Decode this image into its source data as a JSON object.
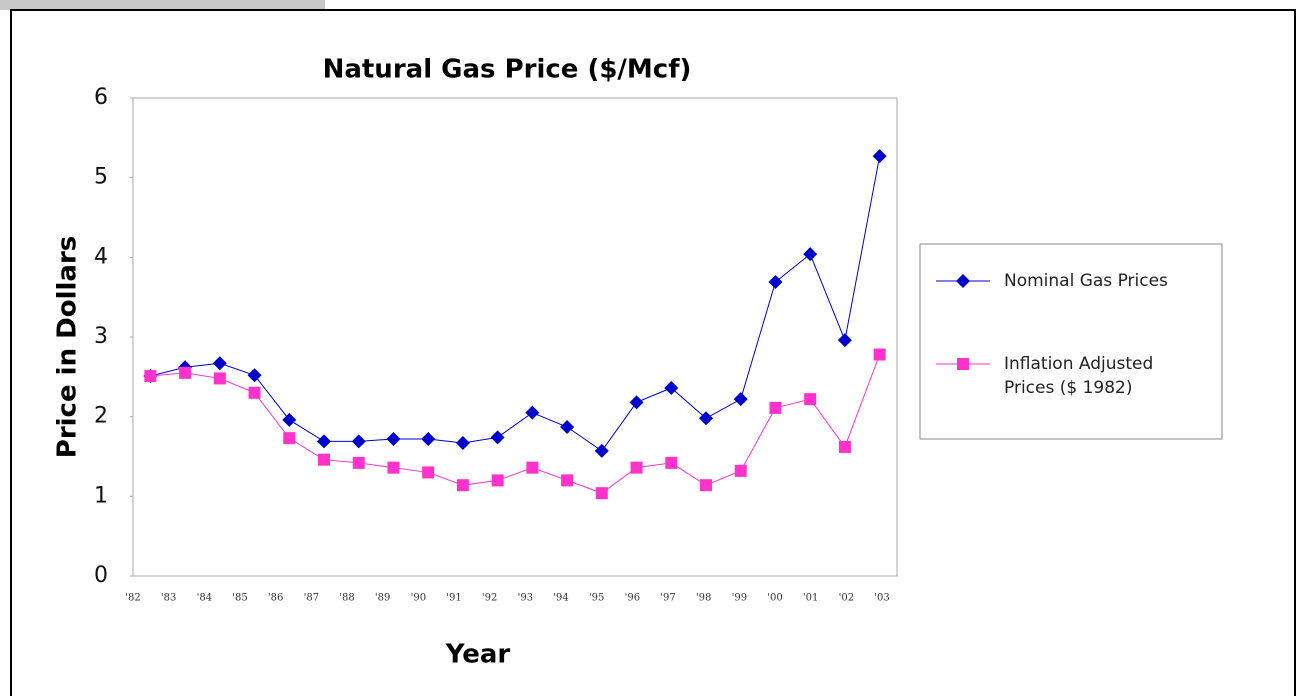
{
  "chart_data": {
    "type": "line",
    "title": "Natural Gas Price ($/Mcf)",
    "x_label": "Year",
    "y_label": "Price in Dollars",
    "categories": [
      "'82",
      "'83",
      "'84",
      "'85",
      "'86",
      "'87",
      "'88",
      "'89",
      "'90",
      "'91",
      "'92",
      "'93",
      "'94",
      "'95",
      "'96",
      "'97",
      "'98",
      "'99",
      "'00",
      "'01",
      "'02",
      "'03"
    ],
    "series": [
      {
        "name": "Nominal Gas Prices",
        "color": "#0000cc",
        "marker": "diamond",
        "values": [
          2.51,
          2.62,
          2.67,
          2.52,
          1.96,
          1.69,
          1.69,
          1.72,
          1.72,
          1.67,
          1.74,
          2.05,
          1.87,
          1.57,
          2.18,
          2.36,
          1.98,
          2.22,
          3.69,
          4.04,
          2.96,
          5.27
        ]
      },
      {
        "name": "Inflation Adjusted Prices ($ 1982)",
        "color": "#ff33cc",
        "marker": "square",
        "values": [
          2.51,
          2.55,
          2.48,
          2.3,
          1.73,
          1.46,
          1.42,
          1.36,
          1.3,
          1.14,
          1.2,
          1.36,
          1.2,
          1.04,
          1.36,
          1.42,
          1.14,
          1.32,
          2.11,
          2.22,
          1.62,
          2.78
        ]
      }
    ],
    "ylim": [
      0,
      6
    ],
    "yticks": [
      0,
      1,
      2,
      3,
      4,
      5,
      6
    ],
    "legend": "right",
    "grid": false
  }
}
